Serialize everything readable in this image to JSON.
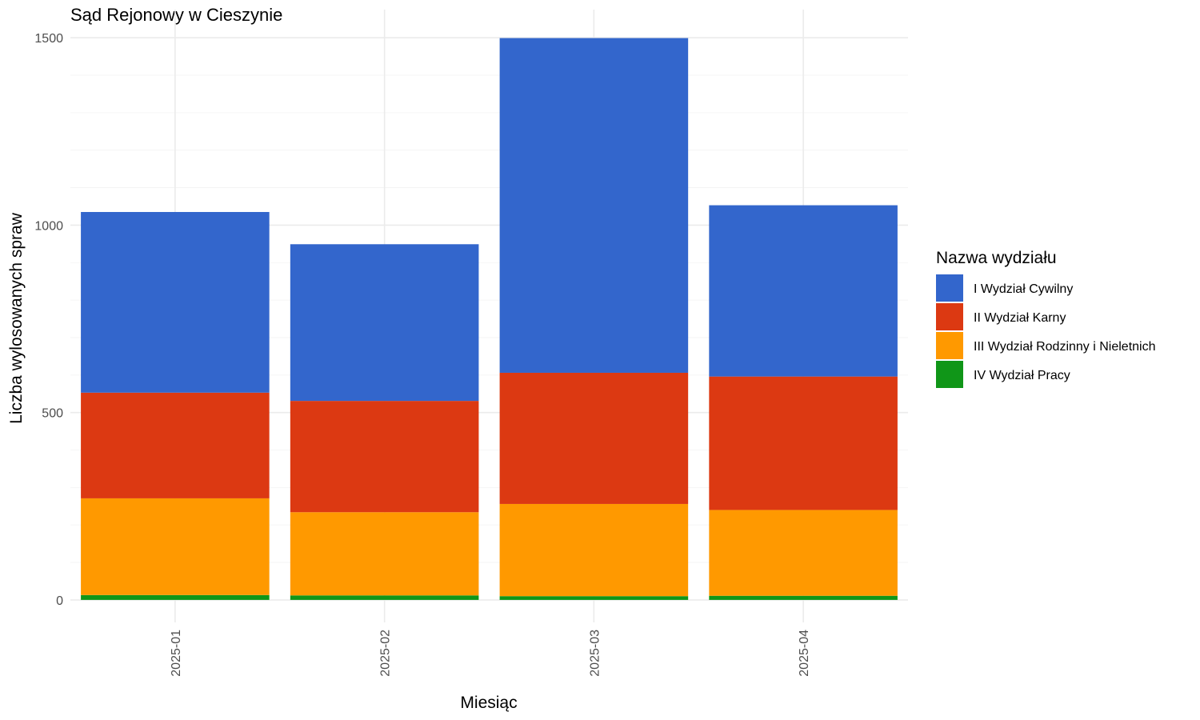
{
  "chart_data": {
    "type": "bar",
    "stacked": true,
    "title": "Sąd Rejonowy w Cieszynie",
    "xlabel": "Miesiąc",
    "ylabel": "Liczba wylosowanych spraw",
    "categories": [
      "2025-01",
      "2025-02",
      "2025-03",
      "2025-04"
    ],
    "ylim": [
      -60,
      1575
    ],
    "yticks": [
      0,
      500,
      1000,
      1500
    ],
    "ytick_labels": [
      "0",
      "500",
      "1000",
      "1500"
    ],
    "grid": true,
    "legend": {
      "title": "Nazwa wydziału",
      "position": "right"
    },
    "series": [
      {
        "name": "I Wydział Cywilny",
        "color": "#3366CC",
        "values": [
          482,
          418,
          893,
          457
        ]
      },
      {
        "name": "II Wydział Karny",
        "color": "#DC3912",
        "values": [
          282,
          297,
          350,
          356
        ]
      },
      {
        "name": "III Wydział Rodzinny i Nieletnich",
        "color": "#FF9900",
        "values": [
          258,
          222,
          246,
          229
        ]
      },
      {
        "name": "IV Wydział Pracy",
        "color": "#109618",
        "values": [
          13,
          12,
          10,
          11
        ]
      }
    ]
  }
}
